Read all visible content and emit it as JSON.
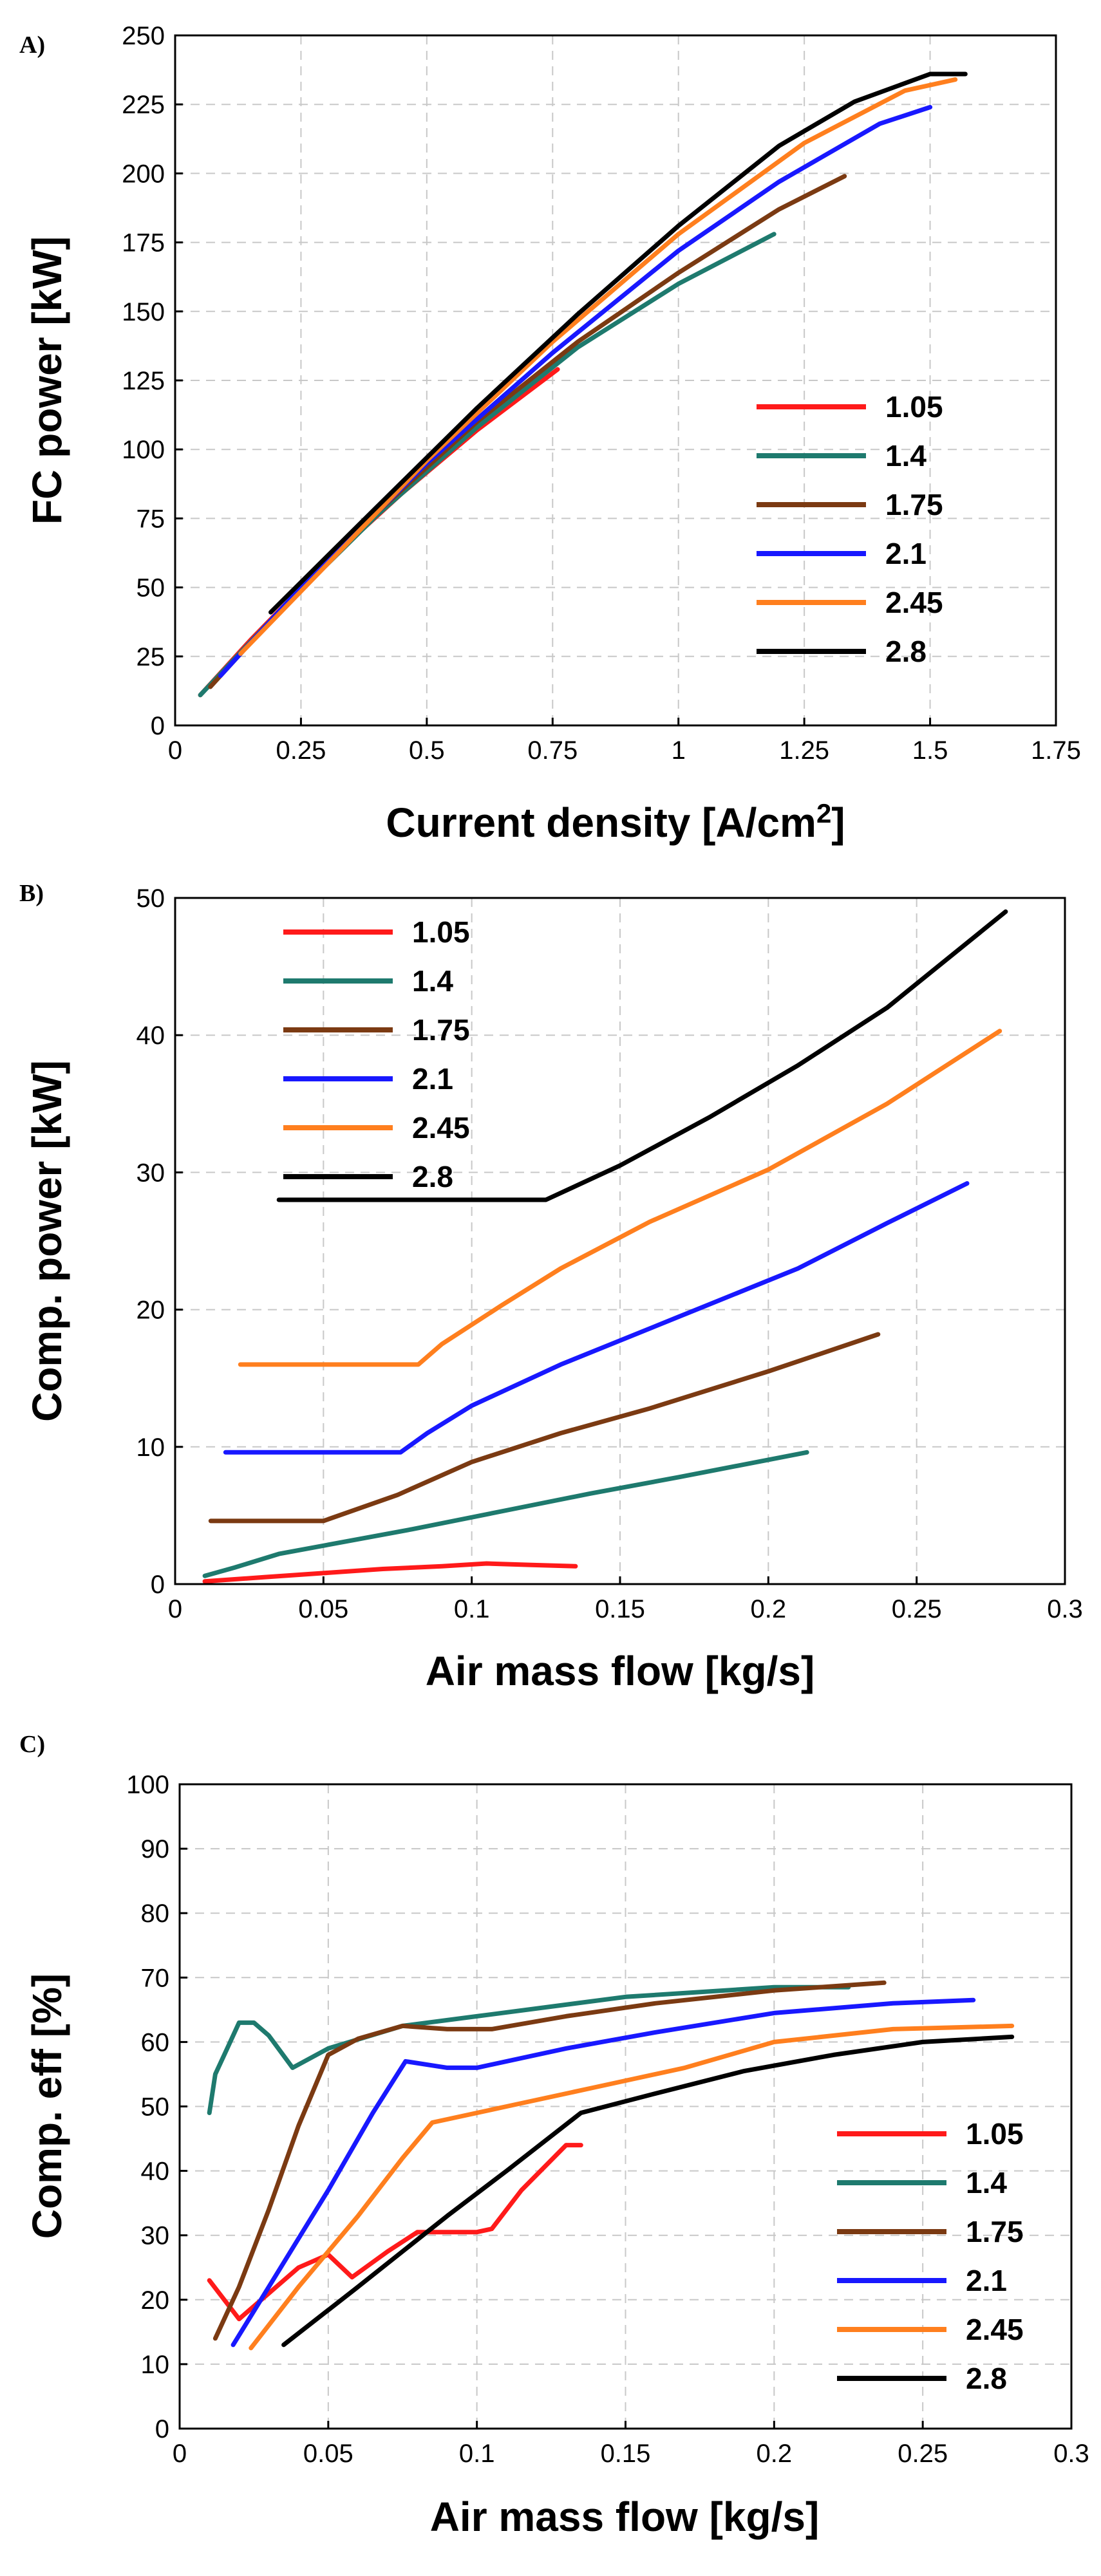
{
  "colors": {
    "1.05": "#ff1a1a",
    "1.4": "#1e7a6e",
    "1.75": "#7b3a12",
    "2.1": "#1818ff",
    "2.45": "#ff7f1e",
    "2.8": "#000000"
  },
  "chart_data": [
    {
      "panel": "A)",
      "type": "line",
      "xlabel": "Current density [A/cm",
      "xlabel_sup": "2",
      "xlabel_tail": "]",
      "ylabel": "FC power [kW]",
      "xlim": [
        0,
        1.75
      ],
      "ylim": [
        0,
        250
      ],
      "xticks": [
        0,
        0.25,
        0.5,
        0.75,
        1,
        1.25,
        1.5,
        1.75
      ],
      "xtick_labels": [
        "0",
        "0.25",
        "0.5",
        "0.75",
        "1",
        "1.25",
        "1.5",
        "1.75"
      ],
      "yticks": [
        0,
        25,
        50,
        75,
        100,
        125,
        150,
        175,
        200,
        225,
        250
      ],
      "ytick_labels": [
        "0",
        "25",
        "50",
        "75",
        "100",
        "125",
        "150",
        "175",
        "200",
        "225",
        "250"
      ],
      "grid": true,
      "legend_position": "right-middle",
      "series": [
        {
          "name": "1.05",
          "x": [
            0.05,
            0.15,
            0.3,
            0.45,
            0.6,
            0.76
          ],
          "y": [
            11,
            31,
            59,
            84,
            107,
            129
          ]
        },
        {
          "name": "1.4",
          "x": [
            0.05,
            0.2,
            0.4,
            0.6,
            0.8,
            1.0,
            1.19
          ],
          "y": [
            11,
            40,
            76,
            108,
            137,
            160,
            178
          ]
        },
        {
          "name": "1.75",
          "x": [
            0.07,
            0.2,
            0.4,
            0.6,
            0.8,
            1.0,
            1.2,
            1.33
          ],
          "y": [
            14,
            40,
            77,
            110,
            139,
            164,
            187,
            199
          ]
        },
        {
          "name": "2.1",
          "x": [
            0.09,
            0.25,
            0.5,
            0.75,
            1.0,
            1.2,
            1.4,
            1.5
          ],
          "y": [
            18,
            50,
            95,
            135,
            172,
            197,
            218,
            224
          ]
        },
        {
          "name": "2.45",
          "x": [
            0.13,
            0.3,
            0.5,
            0.75,
            1.0,
            1.25,
            1.45,
            1.55
          ],
          "y": [
            26,
            58,
            96,
            139,
            178,
            211,
            230,
            234
          ]
        },
        {
          "name": "2.8",
          "x": [
            0.19,
            0.4,
            0.6,
            0.8,
            1.0,
            1.2,
            1.35,
            1.5,
            1.57
          ],
          "y": [
            41,
            79,
            115,
            149,
            181,
            210,
            226,
            236,
            236
          ]
        }
      ]
    },
    {
      "panel": "B)",
      "type": "line",
      "xlabel": "Air mass flow [kg/s]",
      "ylabel": "Comp. power [kW]",
      "xlim": [
        0,
        0.3
      ],
      "ylim": [
        0,
        50
      ],
      "xticks": [
        0,
        0.05,
        0.1,
        0.15,
        0.2,
        0.25,
        0.3
      ],
      "xtick_labels": [
        "0",
        "0.05",
        "0.1",
        "0.15",
        "0.2",
        "0.25",
        "0.3"
      ],
      "yticks": [
        0,
        10,
        20,
        30,
        40,
        50
      ],
      "ytick_labels": [
        "0",
        "10",
        "20",
        "30",
        "40",
        "50"
      ],
      "grid": true,
      "legend_position": "top-left",
      "series": [
        {
          "name": "1.05",
          "x": [
            0.01,
            0.03,
            0.05,
            0.07,
            0.09,
            0.105,
            0.12,
            0.135
          ],
          "y": [
            0.2,
            0.5,
            0.8,
            1.1,
            1.3,
            1.5,
            1.4,
            1.3
          ]
        },
        {
          "name": "1.4",
          "x": [
            0.01,
            0.02,
            0.035,
            0.05,
            0.08,
            0.11,
            0.14,
            0.17,
            0.213
          ],
          "y": [
            0.6,
            1.2,
            2.2,
            2.8,
            4.0,
            5.3,
            6.6,
            7.8,
            9.6
          ]
        },
        {
          "name": "1.75",
          "x": [
            0.012,
            0.05,
            0.075,
            0.1,
            0.13,
            0.16,
            0.2,
            0.237
          ],
          "y": [
            4.6,
            4.6,
            6.5,
            8.9,
            11.0,
            12.8,
            15.5,
            18.2
          ]
        },
        {
          "name": "2.1",
          "x": [
            0.017,
            0.076,
            0.085,
            0.1,
            0.13,
            0.17,
            0.21,
            0.24,
            0.267
          ],
          "y": [
            9.6,
            9.6,
            11.0,
            13.0,
            16.0,
            19.5,
            23.0,
            26.3,
            29.2
          ]
        },
        {
          "name": "2.45",
          "x": [
            0.022,
            0.082,
            0.09,
            0.11,
            0.13,
            0.16,
            0.2,
            0.24,
            0.278
          ],
          "y": [
            16.0,
            16.0,
            17.5,
            20.3,
            23.0,
            26.4,
            30.2,
            35.0,
            40.3
          ]
        },
        {
          "name": "2.8",
          "x": [
            0.035,
            0.125,
            0.135,
            0.15,
            0.18,
            0.21,
            0.24,
            0.28
          ],
          "y": [
            28.0,
            28.0,
            29.0,
            30.5,
            34.0,
            37.8,
            42.0,
            49.0
          ]
        }
      ]
    },
    {
      "panel": "C)",
      "type": "line",
      "xlabel": "Air mass flow [kg/s]",
      "ylabel": "Comp. eff [%]",
      "xlim": [
        0,
        0.3
      ],
      "ylim": [
        0,
        100
      ],
      "xticks": [
        0,
        0.05,
        0.1,
        0.15,
        0.2,
        0.25,
        0.3
      ],
      "xtick_labels": [
        "0",
        "0.05",
        "0.1",
        "0.15",
        "0.2",
        "0.25",
        "0.3"
      ],
      "yticks": [
        0,
        10,
        20,
        30,
        40,
        50,
        60,
        70,
        80,
        90,
        100
      ],
      "ytick_labels": [
        "0",
        "10",
        "20",
        "30",
        "40",
        "50",
        "60",
        "70",
        "80",
        "90",
        "100"
      ],
      "grid": true,
      "legend_position": "right-bottom",
      "series": [
        {
          "name": "1.05",
          "x": [
            0.01,
            0.02,
            0.03,
            0.04,
            0.05,
            0.058,
            0.07,
            0.08,
            0.1,
            0.105,
            0.115,
            0.13,
            0.135
          ],
          "y": [
            23,
            17,
            21,
            25,
            27,
            23.5,
            27.5,
            30.5,
            30.5,
            31,
            37,
            44,
            44
          ]
        },
        {
          "name": "1.4",
          "x": [
            0.01,
            0.012,
            0.015,
            0.02,
            0.025,
            0.03,
            0.038,
            0.05,
            0.075,
            0.1,
            0.15,
            0.2,
            0.225
          ],
          "y": [
            49,
            55,
            58,
            63,
            63,
            61,
            56,
            59,
            62.5,
            64,
            67,
            68.5,
            68.5
          ]
        },
        {
          "name": "1.75",
          "x": [
            0.012,
            0.02,
            0.03,
            0.04,
            0.05,
            0.06,
            0.075,
            0.09,
            0.105,
            0.13,
            0.16,
            0.2,
            0.237
          ],
          "y": [
            14,
            22,
            34,
            47,
            58,
            60.5,
            62.5,
            62,
            62,
            64,
            66,
            68,
            69.2
          ]
        },
        {
          "name": "2.1",
          "x": [
            0.018,
            0.03,
            0.05,
            0.065,
            0.076,
            0.09,
            0.1,
            0.13,
            0.16,
            0.2,
            0.24,
            0.267
          ],
          "y": [
            13,
            22,
            37,
            49,
            57,
            56,
            56,
            59,
            61.5,
            64.5,
            66,
            66.5
          ]
        },
        {
          "name": "2.45",
          "x": [
            0.024,
            0.04,
            0.06,
            0.075,
            0.085,
            0.11,
            0.14,
            0.17,
            0.2,
            0.24,
            0.28
          ],
          "y": [
            12.5,
            22,
            33,
            42,
            47.5,
            50,
            53,
            56,
            60,
            62,
            62.5
          ]
        },
        {
          "name": "2.8",
          "x": [
            0.035,
            0.06,
            0.09,
            0.11,
            0.135,
            0.16,
            0.19,
            0.22,
            0.25,
            0.28
          ],
          "y": [
            13,
            22,
            33,
            40,
            49,
            52,
            55.5,
            58,
            60,
            60.8
          ]
        }
      ]
    }
  ]
}
